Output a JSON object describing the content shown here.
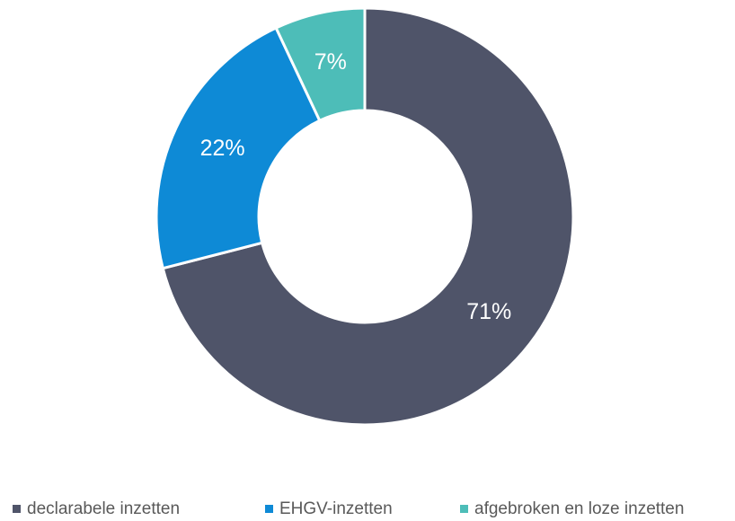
{
  "chart_data": {
    "type": "donut",
    "categories": [
      "declarabele inzetten",
      "EHGV-inzetten",
      "afgebroken en loze inzetten"
    ],
    "values": [
      71,
      22,
      7
    ],
    "value_labels": [
      "71%",
      "22%",
      "7%"
    ],
    "colors": [
      "#4f5469",
      "#0e8ad6",
      "#4dbdb8"
    ],
    "legend": "bottom"
  }
}
